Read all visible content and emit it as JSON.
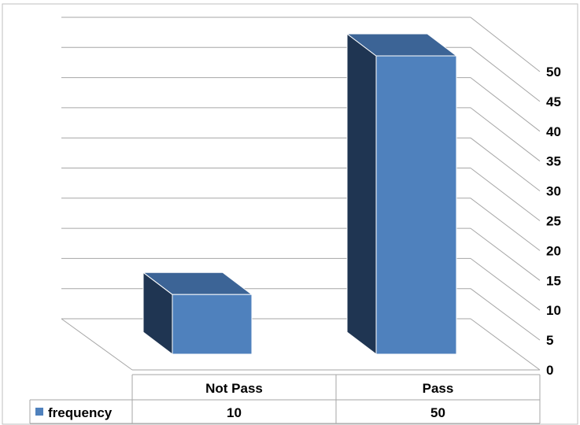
{
  "chart_data": {
    "type": "bar",
    "categories": [
      "Not Pass",
      "Pass"
    ],
    "series": [
      {
        "name": "frequency",
        "values": [
          10,
          50
        ]
      }
    ],
    "ylim": [
      0,
      50
    ],
    "yticks": [
      0,
      5,
      10,
      15,
      20,
      25,
      30,
      35,
      40,
      45,
      50
    ],
    "grid": true,
    "legend": "bottom-left data table",
    "data_table": true,
    "colors": {
      "bar_front": "#4f81bd",
      "bar_top": "#3c6496",
      "bar_side": "#1f3552",
      "grid": "#a6a6a6",
      "legend_key": "#4f81bd"
    }
  }
}
